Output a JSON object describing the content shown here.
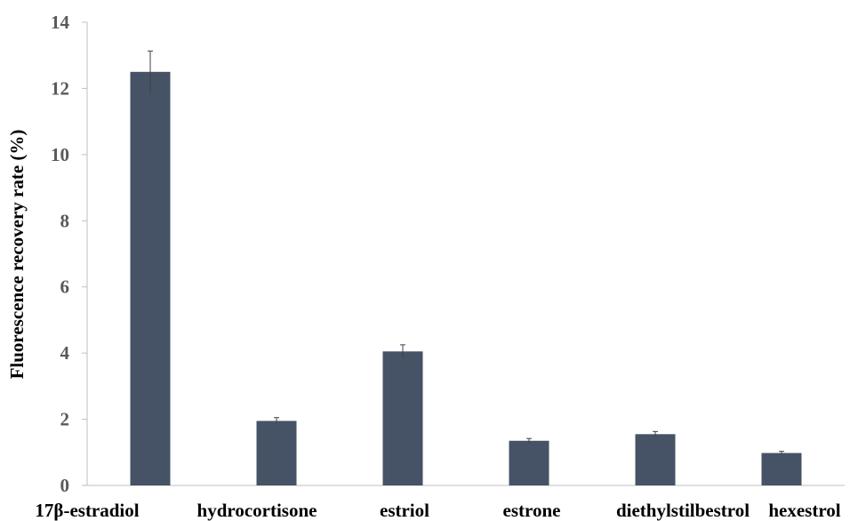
{
  "chart_data": {
    "type": "bar",
    "title": "",
    "xlabel": "",
    "ylabel": "Fluorescence recovery rate (%)",
    "categories": [
      "17β-estradiol",
      "hydrocortisone",
      "estriol",
      "estrone",
      "diethylstilbestrol",
      "hexestrol"
    ],
    "values": [
      12.5,
      1.95,
      4.05,
      1.35,
      1.55,
      0.98
    ],
    "errors": [
      0.63,
      0.1,
      0.2,
      0.07,
      0.08,
      0.05
    ],
    "ylim": [
      0,
      14
    ],
    "yticks": [
      0,
      2,
      4,
      6,
      8,
      10,
      12,
      14
    ],
    "grid": false,
    "legend": "none",
    "colors": {
      "bar": "#465366",
      "axis": "#bfbfbf",
      "tick_text": "#595959",
      "error_bar": "#404040"
    }
  }
}
